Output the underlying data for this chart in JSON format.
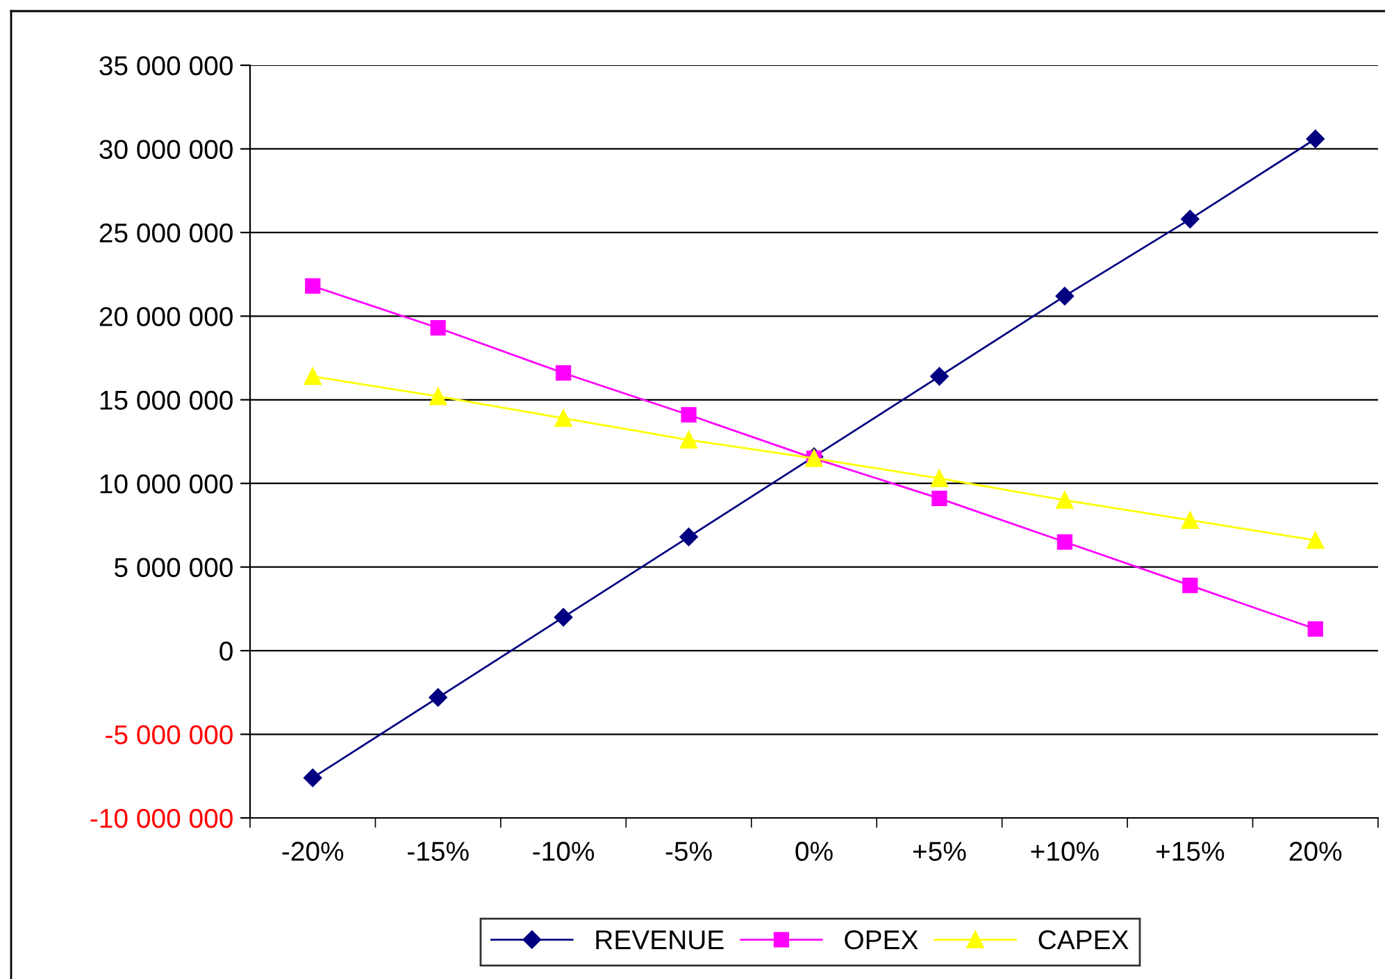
{
  "chart_data": {
    "type": "line",
    "categories": [
      "-20%",
      "-15%",
      "-10%",
      "-5%",
      "0%",
      "+5%",
      "+10%",
      "+15%",
      "20%"
    ],
    "series": [
      {
        "name": "REVENUE",
        "color": "#000080",
        "marker": "diamond",
        "values": [
          -7600000,
          -2800000,
          2000000,
          6800000,
          11600000,
          16400000,
          21200000,
          25800000,
          30600000
        ]
      },
      {
        "name": "OPEX",
        "color": "#ff00ff",
        "marker": "square",
        "values": [
          21800000,
          19300000,
          16600000,
          14100000,
          11500000,
          9100000,
          6500000,
          3900000,
          1300000
        ]
      },
      {
        "name": "CAPEX",
        "color": "#ffff00",
        "marker": "triangle",
        "values": [
          16400000,
          15200000,
          13900000,
          12600000,
          11500000,
          10300000,
          9000000,
          7800000,
          6600000
        ]
      }
    ],
    "ylim": [
      -10000000,
      35000000
    ],
    "yticks": [
      {
        "value": -10000000,
        "label": "-10 000 000"
      },
      {
        "value": -5000000,
        "label": "-5 000 000"
      },
      0,
      {
        "value": 5000000,
        "label": "5 000 000"
      },
      {
        "value": 10000000,
        "label": "10 000 000"
      },
      {
        "value": 15000000,
        "label": "15 000 000"
      },
      {
        "value": 20000000,
        "label": "20 000 000"
      },
      {
        "value": 25000000,
        "label": "25 000 000"
      },
      {
        "value": 30000000,
        "label": "30 000 000"
      },
      {
        "value": 35000000,
        "label": "35 000 000"
      }
    ],
    "grid": "y",
    "legend": "bottom",
    "line_style": "solid"
  }
}
